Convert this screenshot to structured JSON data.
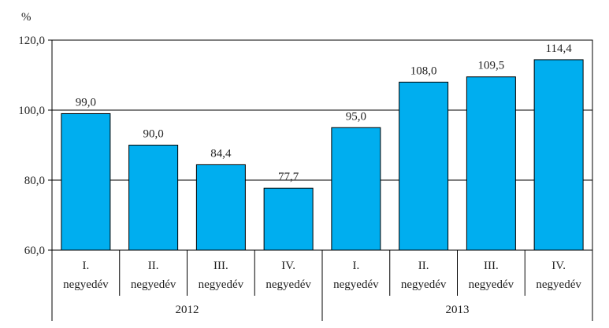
{
  "chart_data": {
    "type": "bar",
    "ylabel": "%",
    "ylim": [
      60,
      120
    ],
    "yticks": [
      60,
      80,
      100,
      120
    ],
    "ytick_labels": [
      "60,0",
      "80,0",
      "100,0",
      "120,0"
    ],
    "categories": [
      {
        "line1": "I.",
        "line2": "negyedév"
      },
      {
        "line1": "II.",
        "line2": "negyedév"
      },
      {
        "line1": "III.",
        "line2": "negyedév"
      },
      {
        "line1": "IV.",
        "line2": "negyedév"
      },
      {
        "line1": "I.",
        "line2": "negyedév"
      },
      {
        "line1": "II.",
        "line2": "negyedév"
      },
      {
        "line1": "III.",
        "line2": "negyedév"
      },
      {
        "line1": "IV.",
        "line2": "negyedév"
      }
    ],
    "groups": [
      {
        "label": "2012",
        "count": 4
      },
      {
        "label": "2013",
        "count": 4
      }
    ],
    "values": [
      99.0,
      90.0,
      84.4,
      77.7,
      95.0,
      108.0,
      109.5,
      114.4
    ],
    "value_labels": [
      "99,0",
      "90,0",
      "84,4",
      "77,7",
      "95,0",
      "108,0",
      "109,5",
      "114,4"
    ],
    "bar_color": "#00aeef",
    "grid": true
  }
}
